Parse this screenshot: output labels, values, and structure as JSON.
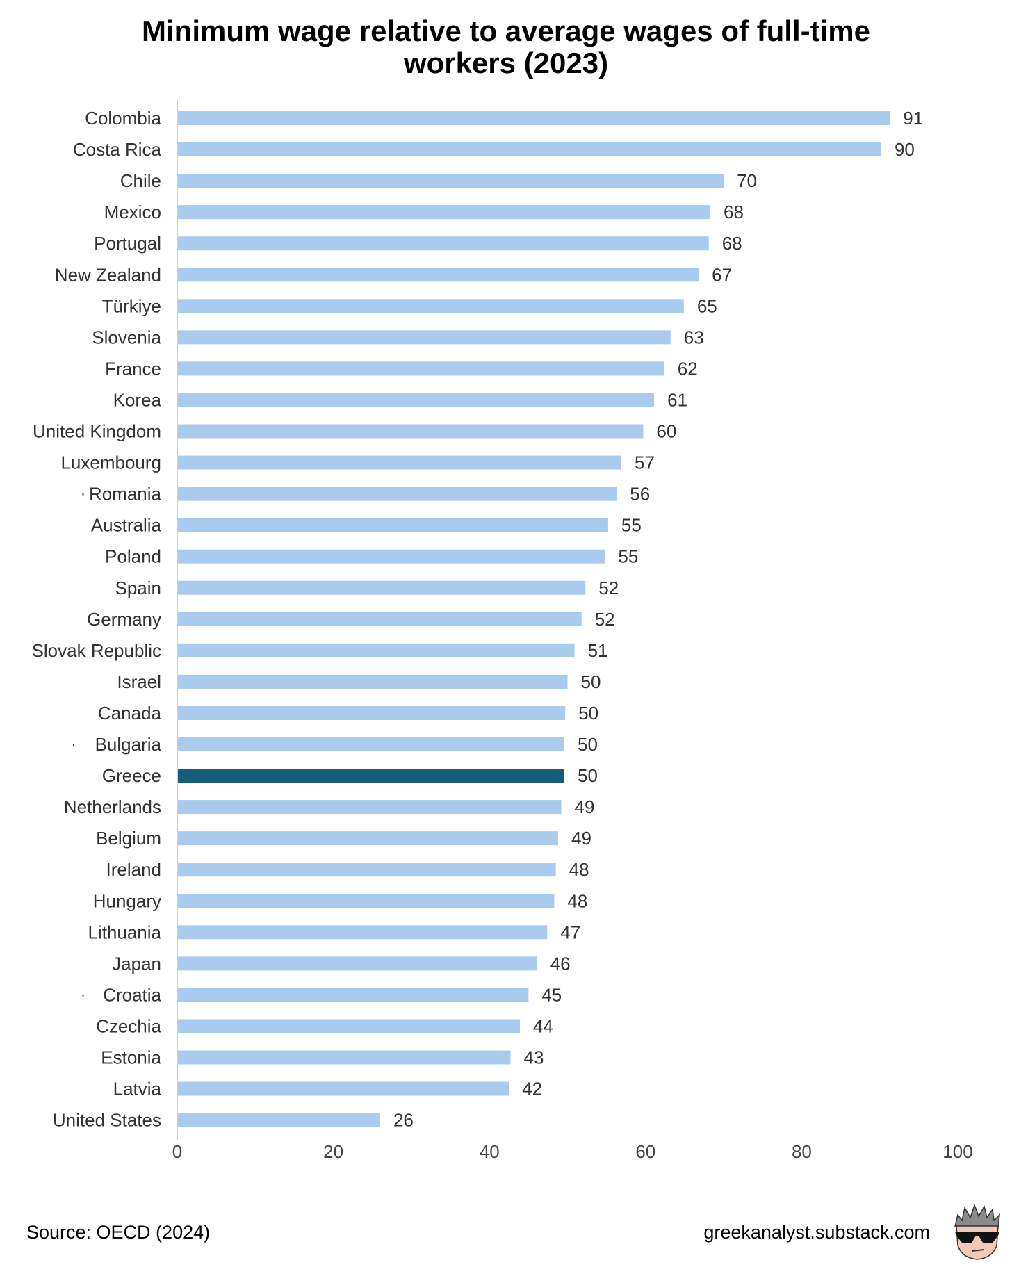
{
  "chart_data": {
    "type": "bar",
    "orientation": "horizontal",
    "title": "Minimum wage relative to average wages of full-time workers (2023)",
    "title_lines": [
      "Minimum wage relative to average wages of full-time",
      "workers (2023)"
    ],
    "categories": [
      "Colombia",
      "Costa Rica",
      "Chile",
      "Mexico",
      "Portugal",
      "New Zealand",
      "Türkiye",
      "Slovenia",
      "France",
      "Korea",
      "United Kingdom",
      "Luxembourg",
      "Romania",
      "Australia",
      "Poland",
      "Spain",
      "Germany",
      "Slovak Republic",
      "Israel",
      "Canada",
      "Bulgaria",
      "Greece",
      "Netherlands",
      "Belgium",
      "Ireland",
      "Hungary",
      "Lithuania",
      "Japan",
      "Croatia",
      "Czechia",
      "Estonia",
      "Latvia",
      "United States"
    ],
    "values": [
      91.3,
      90.2,
      70.0,
      68.3,
      68.1,
      66.8,
      64.9,
      63.2,
      62.4,
      61.1,
      59.7,
      56.9,
      56.3,
      55.2,
      54.8,
      52.3,
      51.8,
      50.9,
      50.0,
      49.7,
      49.6,
      49.6,
      49.2,
      48.8,
      48.5,
      48.3,
      47.4,
      46.1,
      45.0,
      43.9,
      42.7,
      42.5,
      26.0
    ],
    "value_labels": [
      "91",
      "90",
      "70",
      "68",
      "68",
      "67",
      "65",
      "63",
      "62",
      "61",
      "60",
      "57",
      "56",
      "55",
      "55",
      "52",
      "52",
      "51",
      "50",
      "50",
      "50",
      "50",
      "49",
      "49",
      "48",
      "48",
      "47",
      "46",
      "45",
      "44",
      "43",
      "42",
      "26"
    ],
    "markers": {
      "Romania": "·",
      "Bulgaria": "·",
      "Croatia": "·"
    },
    "highlight": "Greece",
    "xlim": [
      0,
      100
    ],
    "xticks": [
      "0",
      "20",
      "40",
      "60",
      "80",
      "100"
    ],
    "xlabel": "",
    "ylabel": "",
    "grid": false,
    "legend": "none",
    "colors": {
      "bar": "#a8cbee",
      "highlight": "#165c7d",
      "axis": "#d0d0d0",
      "text": "#333333"
    }
  },
  "footer": {
    "source": "Source: OECD (2024)",
    "site": "greekanalyst.substack.com"
  },
  "logo": {
    "icon": "sunglasses-avatar-icon"
  }
}
